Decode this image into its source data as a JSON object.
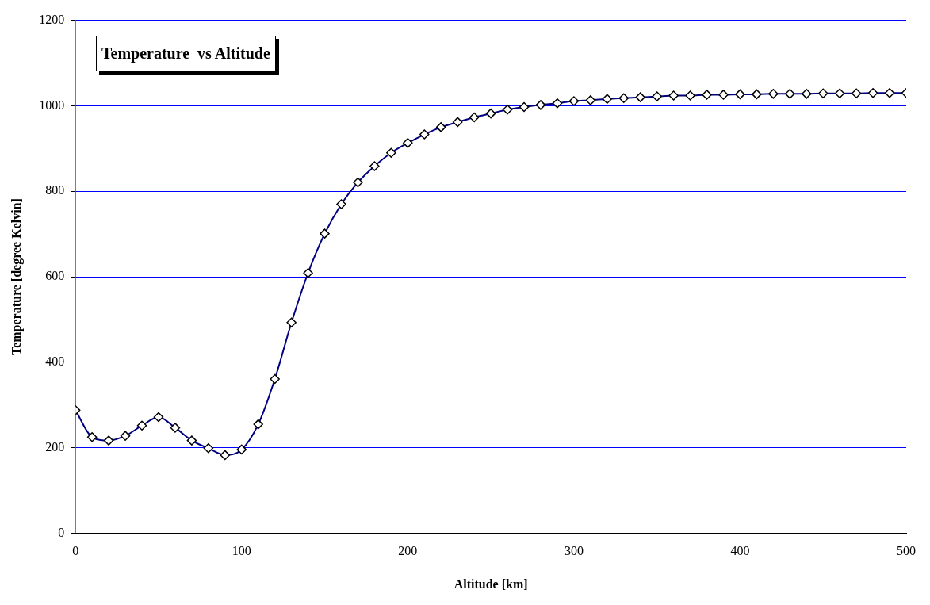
{
  "chart_data": {
    "type": "line",
    "title": "Temperature  vs Altitude",
    "xlabel": "Altitude [km]",
    "ylabel": "Temperature [degree Kelvin]",
    "x": [
      0,
      10,
      20,
      30,
      40,
      50,
      60,
      70,
      80,
      90,
      100,
      110,
      120,
      130,
      140,
      150,
      160,
      170,
      180,
      190,
      200,
      210,
      220,
      230,
      240,
      250,
      260,
      270,
      280,
      290,
      300,
      310,
      320,
      330,
      340,
      350,
      360,
      370,
      380,
      390,
      400,
      410,
      420,
      430,
      440,
      450,
      460,
      470,
      480,
      490,
      500
    ],
    "series": [
      {
        "color": "#000080",
        "values": [
          288,
          225,
          217,
          228,
          252,
          272,
          247,
          217,
          199,
          183,
          196,
          255,
          361,
          493,
          609,
          701,
          770,
          821,
          859,
          890,
          913,
          933,
          950,
          962,
          973,
          982,
          991,
          997,
          1002,
          1006,
          1011,
          1013,
          1016,
          1018,
          1020,
          1022,
          1024,
          1024,
          1026,
          1026,
          1027,
          1027,
          1028,
          1028,
          1028,
          1029,
          1029,
          1029,
          1030,
          1030,
          1030
        ]
      }
    ],
    "xlim": [
      0,
      500
    ],
    "xticks": [
      0,
      100,
      200,
      300,
      400,
      500
    ],
    "ylim": [
      0,
      1200
    ],
    "yticks": [
      0,
      200,
      400,
      600,
      800,
      1000,
      1200
    ],
    "grid": "y",
    "legend": false,
    "marker": "diamond",
    "line_style": "solid"
  }
}
